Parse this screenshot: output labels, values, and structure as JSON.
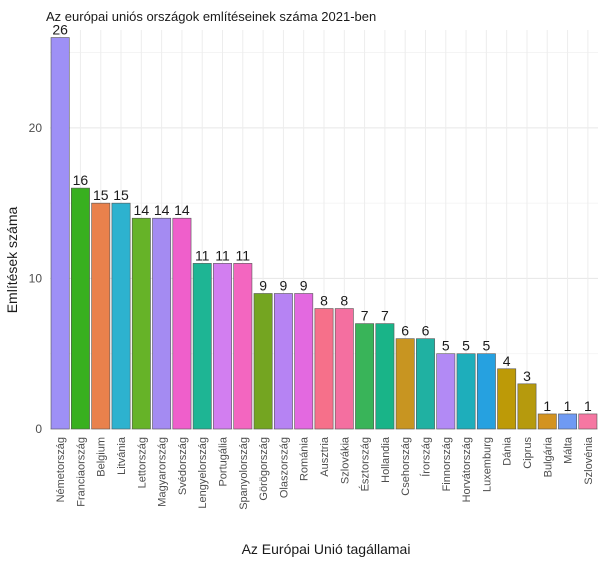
{
  "chart_data": {
    "type": "bar",
    "title": "Az európai uniós országok említéseinek száma 2021-ben",
    "xlabel": "Az Európai Unió tagállamai",
    "ylabel": "Említések száma",
    "ylim": [
      0,
      26.5
    ],
    "yticks": [
      0,
      10,
      20
    ],
    "grid": true,
    "legend": "none",
    "categories": [
      "Németország",
      "Franciaország",
      "Belgium",
      "Litvánia",
      "Lettország",
      "Magyarország",
      "Svédország",
      "Lengyelország",
      "Portugália",
      "Spanyolország",
      "Görögország",
      "Olaszország",
      "Románia",
      "Ausztria",
      "Szlovákia",
      "Észtország",
      "Hollandia",
      "Csehország",
      "Írország",
      "Finnország",
      "Horvátország",
      "Luxemburg",
      "Dánia",
      "Ciprus",
      "Bulgária",
      "Málta",
      "Szlovénia"
    ],
    "values": [
      26,
      16,
      15,
      15,
      14,
      14,
      14,
      11,
      11,
      11,
      9,
      9,
      9,
      8,
      8,
      7,
      7,
      6,
      6,
      5,
      5,
      5,
      4,
      3,
      1,
      1,
      1
    ],
    "colors": [
      "#9E90F6",
      "#38B01F",
      "#E9814C",
      "#2DB2CF",
      "#66B328",
      "#A48BF2",
      "#EF5FCB",
      "#1EB594",
      "#D27EF0",
      "#F366C0",
      "#74A521",
      "#B683F3",
      "#E369E0",
      "#F6708A",
      "#F46FA0",
      "#39B459",
      "#19B488",
      "#C89521",
      "#20B1A2",
      "#B28AF5",
      "#1EAEBB",
      "#26A1E0",
      "#BD9A07",
      "#B69A0D",
      "#D39320",
      "#6F9AF3",
      "#F577A2"
    ]
  }
}
